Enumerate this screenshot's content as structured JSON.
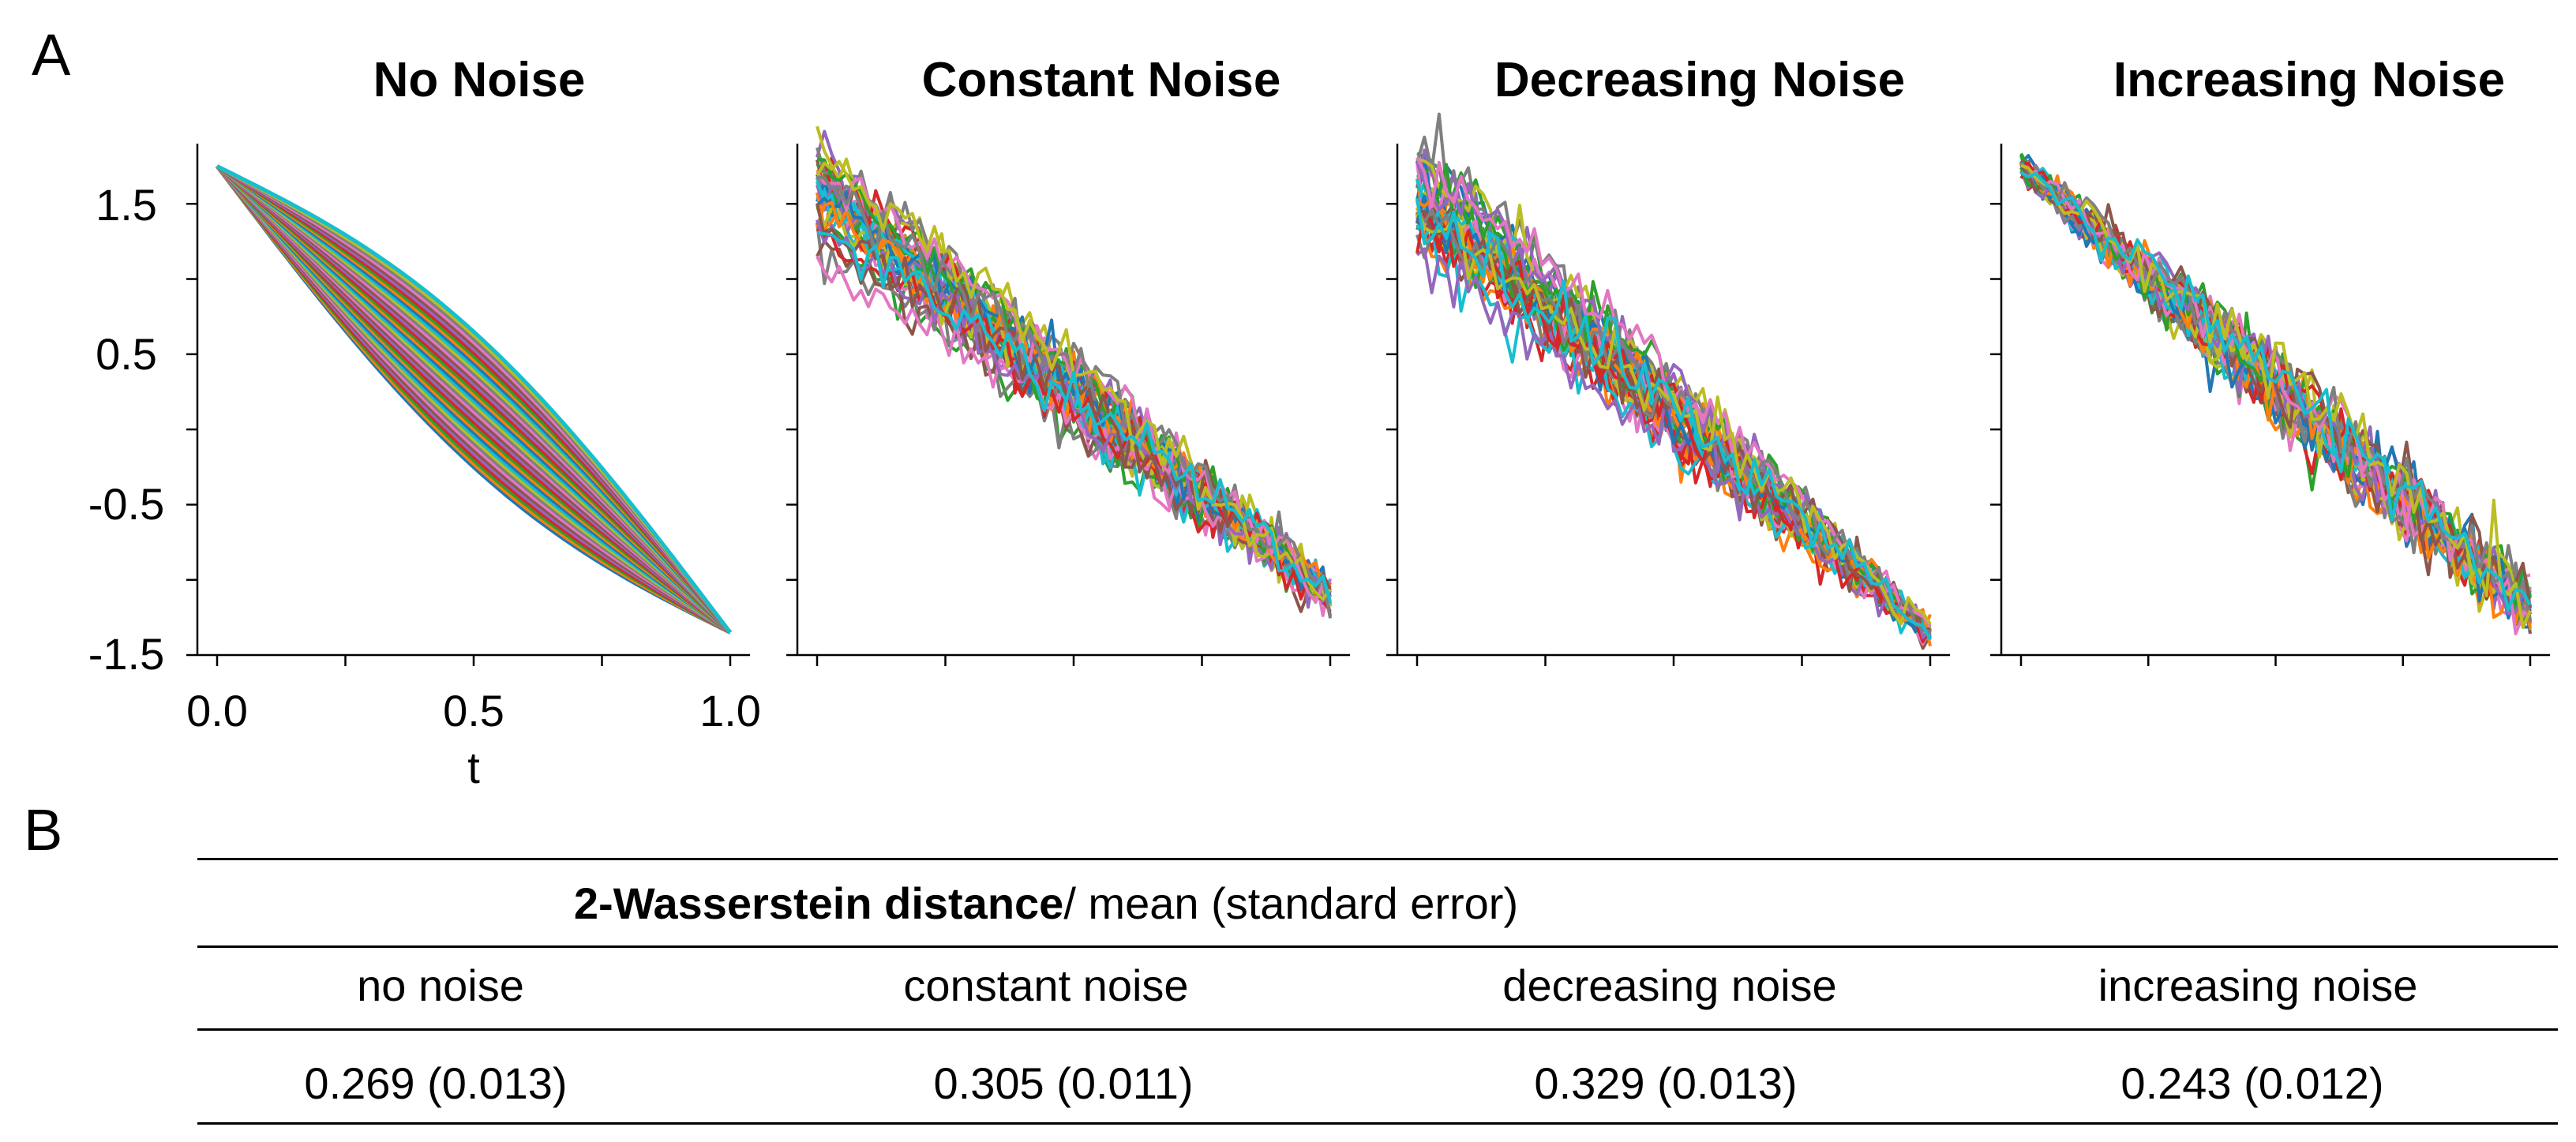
{
  "panel_labels": {
    "a": "A",
    "b": "B"
  },
  "chart_data": [
    {
      "type": "line",
      "title": "No Noise",
      "xlabel": "t",
      "ylabel": "",
      "xlim": [
        0.0,
        1.0
      ],
      "ylim": [
        -1.5,
        1.9
      ],
      "xticks": [
        0.0,
        0.5,
        1.0
      ],
      "xtick_labels": [
        "0.0",
        "0.5",
        "1.0"
      ],
      "yticks": [
        -1.5,
        -0.5,
        0.5,
        1.5
      ],
      "ytick_labels": [
        "-1.5",
        "-0.5",
        "0.5",
        "1.5"
      ],
      "start": 1.75,
      "end": -1.35,
      "spread_start": 0.0,
      "spread_mid": 0.45,
      "noise_profile": "none",
      "n_trajectories": 40
    },
    {
      "type": "line",
      "title": "Constant Noise",
      "xlim": [
        0.0,
        1.0
      ],
      "ylim": [
        -1.5,
        1.9
      ],
      "start": 1.55,
      "end": -1.1,
      "spread_start": 0.18,
      "spread_mid": 0.2,
      "noise_profile": "constant",
      "n_trajectories": 40
    },
    {
      "type": "line",
      "title": "Decreasing Noise",
      "xlim": [
        0.0,
        1.0
      ],
      "ylim": [
        -1.5,
        1.9
      ],
      "start": 1.6,
      "end": -1.35,
      "spread_start": 0.15,
      "spread_mid": 0.2,
      "noise_profile": "decreasing",
      "n_trajectories": 40
    },
    {
      "type": "line",
      "title": "Increasing Noise",
      "xlim": [
        0.0,
        1.0
      ],
      "ylim": [
        -1.5,
        1.9
      ],
      "start": 1.75,
      "end": -1.2,
      "spread_start": 0.0,
      "spread_mid": 0.2,
      "noise_profile": "increasing",
      "n_trajectories": 40
    }
  ],
  "palette": [
    "#1f77b4",
    "#ff7f0e",
    "#2ca02c",
    "#d62728",
    "#9467bd",
    "#8c564b",
    "#e377c2",
    "#7f7f7f",
    "#bcbd22",
    "#17becf"
  ],
  "table": {
    "title_bold": "2-Wasserstein distance",
    "title_rest": "/ mean (standard error)",
    "headers": [
      "no noise",
      "constant noise",
      "decreasing noise",
      "increasing noise"
    ],
    "values": [
      "0.269 (0.013)",
      "0.305 (0.011)",
      "0.329 (0.013)",
      "0.243 (0.012)"
    ]
  }
}
